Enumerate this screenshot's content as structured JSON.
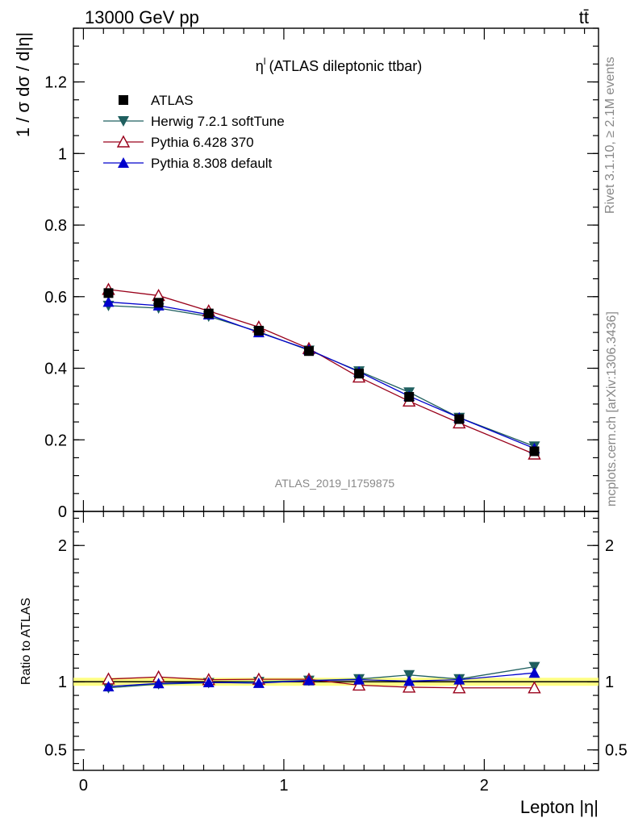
{
  "header": {
    "left": "13000 GeV pp",
    "right": "tt̄"
  },
  "side_labels": {
    "rivet": "Rivet 3.1.10, ≥ 2.1M events",
    "mcplots": "mcplots.cern.ch [arXiv:1306.3436]"
  },
  "chart_data": {
    "type": "line",
    "title": "η",
    "title_superscript": "l",
    "title_suffix": "(ATLAS dileptonic ttbar)",
    "analysis_id": "ATLAS_2019_I1759875",
    "xlabel": "Lepton |η|",
    "ylabel": "1 / σ  dσ / d|η|",
    "ratio_ylabel": "Ratio to ATLAS",
    "xlim": [
      -0.05,
      2.57
    ],
    "ylim": [
      0,
      1.35
    ],
    "ratio_ylim": [
      0.35,
      2.25
    ],
    "x_ticks": [
      0,
      1,
      2
    ],
    "x_tick_labels": [
      "0",
      "1",
      "2"
    ],
    "y_ticks": [
      0,
      0.2,
      0.4,
      0.6,
      0.8,
      1,
      1.2
    ],
    "y_tick_labels": [
      "0",
      "0.2",
      "0.4",
      "0.6",
      "0.8",
      "1",
      "1.2"
    ],
    "ratio_y_ticks": [
      0.5,
      1,
      2
    ],
    "ratio_y_tick_labels": [
      "0.5",
      "1",
      "2"
    ],
    "legend_position": "top-left",
    "x": [
      0.125,
      0.375,
      0.625,
      0.875,
      1.125,
      1.375,
      1.625,
      1.875,
      2.25
    ],
    "series": [
      {
        "name": "ATLAS",
        "marker": "square",
        "color": "#000000",
        "values": [
          0.61,
          0.583,
          0.553,
          0.505,
          0.448,
          0.385,
          0.32,
          0.258,
          0.168
        ]
      },
      {
        "name": "Herwig 7.2.1 softTune",
        "marker": "triangle-down",
        "color": "#1f5f5f",
        "values": [
          0.575,
          0.568,
          0.545,
          0.502,
          0.45,
          0.392,
          0.333,
          0.262,
          0.182
        ]
      },
      {
        "name": "Pythia 6.428 370",
        "marker": "triangle-open",
        "color": "#99001a",
        "values": [
          0.62,
          0.603,
          0.56,
          0.515,
          0.455,
          0.375,
          0.308,
          0.247,
          0.16
        ]
      },
      {
        "name": "Pythia 8.308 default",
        "marker": "triangle-up",
        "color": "#0000cc",
        "values": [
          0.585,
          0.575,
          0.55,
          0.5,
          0.452,
          0.39,
          0.322,
          0.262,
          0.176
        ]
      }
    ],
    "ratio_series": [
      {
        "name": "Herwig 7.2.1 softTune",
        "values": [
          0.955,
          0.983,
          0.992,
          1.0,
          1.009,
          1.02,
          1.05,
          1.02,
          1.11
        ]
      },
      {
        "name": "Pythia 6.428 370",
        "values": [
          1.02,
          1.035,
          1.015,
          1.018,
          1.018,
          0.975,
          0.96,
          0.955,
          0.955
        ]
      },
      {
        "name": "Pythia 8.308 default",
        "values": [
          0.965,
          0.988,
          0.995,
          0.99,
          1.009,
          1.015,
          1.005,
          1.015,
          1.065
        ]
      }
    ],
    "ratio_band_color": "#ffff66",
    "grid": false
  }
}
